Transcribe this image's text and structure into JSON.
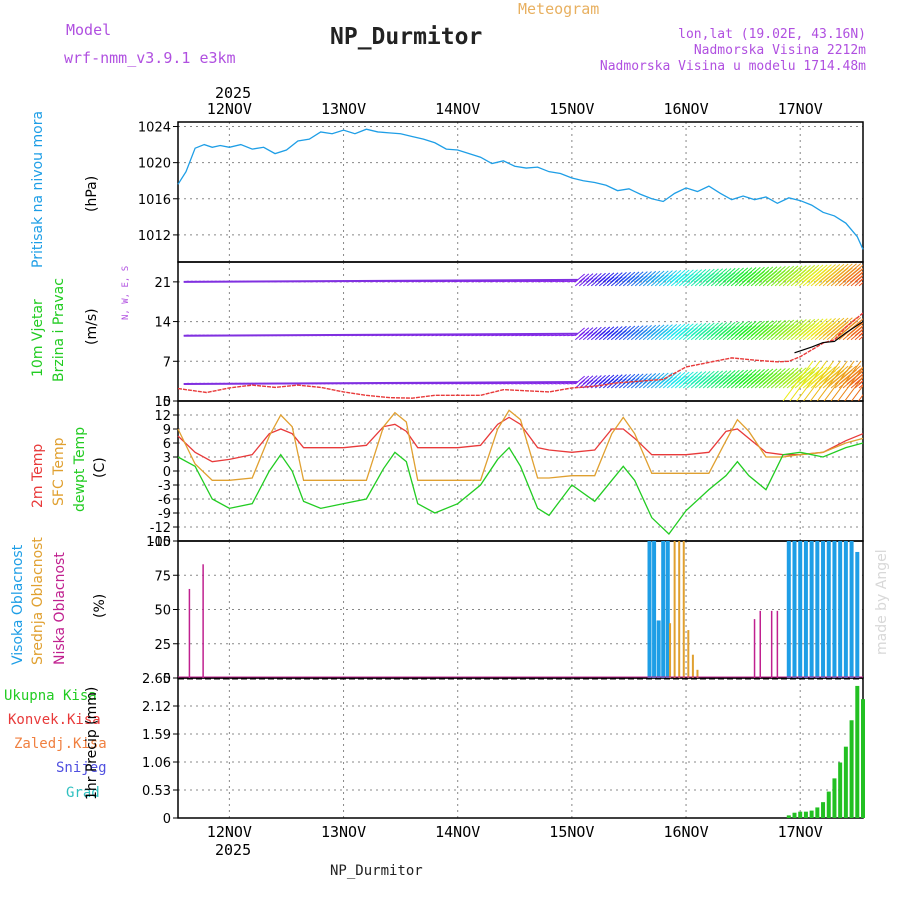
{
  "header": {
    "model_label": "Model",
    "model_name": "wrf-nmm_v3.9.1 e3km",
    "title": "NP_Durmitor",
    "subtitle": "Meteogram",
    "lonlat": "lon,lat (19.02E, 43.16N)",
    "altitude": "Nadmorska Visina 2212m",
    "model_altitude": "Nadmorska Visina u modelu 1714.48m",
    "credit": "made by Angel",
    "footer_station": "NP_Durmitor"
  },
  "colors": {
    "pressure": "#1e9ee6",
    "temp2m": "#e83a3a",
    "sfc_temp": "#e0a030",
    "dewpt": "#22cc22",
    "high_cloud": "#1e9ee6",
    "mid_cloud": "#e0a030",
    "low_cloud": "#c0208f",
    "precip": "#22c022",
    "wind_label": "#22cc22",
    "purple": "#b050e0"
  },
  "axis_days": {
    "year": "2025",
    "labels": [
      "12NOV",
      "13NOV",
      "14NOV",
      "15NOV",
      "16NOV",
      "17NOV"
    ],
    "day_positions": [
      1,
      2,
      3,
      4,
      5,
      6
    ],
    "range": [
      0.55,
      6.55
    ]
  },
  "chart_data": [
    {
      "type": "line",
      "name": "pressure",
      "ylabel": "Pritisak na nivou mora",
      "unit": "(hPa)",
      "yticks": [
        "1012",
        "1016",
        "1020",
        "1024"
      ],
      "ylim": [
        1009,
        1024.5
      ],
      "x": [
        0.55,
        0.62,
        0.7,
        0.78,
        0.85,
        0.92,
        1.0,
        1.1,
        1.2,
        1.3,
        1.4,
        1.5,
        1.6,
        1.7,
        1.8,
        1.9,
        2.0,
        2.1,
        2.2,
        2.3,
        2.4,
        2.5,
        2.6,
        2.7,
        2.8,
        2.9,
        3.0,
        3.1,
        3.2,
        3.3,
        3.4,
        3.5,
        3.6,
        3.7,
        3.8,
        3.9,
        4.0,
        4.1,
        4.2,
        4.3,
        4.4,
        4.5,
        4.6,
        4.7,
        4.8,
        4.9,
        5.0,
        5.1,
        5.2,
        5.3,
        5.4,
        5.5,
        5.6,
        5.7,
        5.8,
        5.9,
        6.0,
        6.1,
        6.2,
        6.3,
        6.4,
        6.5,
        6.55
      ],
      "values": [
        1017.6,
        1019,
        1021.6,
        1022,
        1021.7,
        1021.9,
        1021.7,
        1022,
        1021.5,
        1021.7,
        1021,
        1021.4,
        1022.4,
        1022.6,
        1023.4,
        1023.2,
        1023.6,
        1023.2,
        1023.7,
        1023.4,
        1023.3,
        1023.2,
        1022.9,
        1022.6,
        1022.2,
        1021.5,
        1021.4,
        1021.0,
        1020.6,
        1019.9,
        1020.2,
        1019.6,
        1019.4,
        1019.5,
        1019.0,
        1018.8,
        1018.3,
        1018.0,
        1017.8,
        1017.5,
        1016.9,
        1017.1,
        1016.5,
        1016.0,
        1015.7,
        1016.6,
        1017.2,
        1016.8,
        1017.4,
        1016.6,
        1015.9,
        1016.3,
        1015.9,
        1016.2,
        1015.5,
        1016.1,
        1015.8,
        1015.3,
        1014.5,
        1014.1,
        1013.3,
        1011.8,
        1010.4
      ]
    },
    {
      "type": "line",
      "name": "wind",
      "ylabel": "10m Vjetar",
      "ylabel2": "Brzina i Pravac",
      "unit": "(m/s)",
      "compass": "N, W, E, S",
      "yticks": [
        "0",
        "7",
        "14",
        "21"
      ],
      "ylim": [
        0,
        24.5
      ],
      "x": [
        0.55,
        0.8,
        1.0,
        1.2,
        1.4,
        1.6,
        1.8,
        2.0,
        2.2,
        2.4,
        2.6,
        2.8,
        3.0,
        3.2,
        3.4,
        3.6,
        3.8,
        4.0,
        4.2,
        4.4,
        4.6,
        4.8,
        5.0,
        5.2,
        5.4,
        5.6,
        5.8,
        5.9,
        6.0,
        6.1,
        6.2,
        6.3,
        6.4,
        6.55
      ],
      "values": [
        2.2,
        1.5,
        2.3,
        2.8,
        2.4,
        2.8,
        2.4,
        1.6,
        1.0,
        0.6,
        0.5,
        1.0,
        1.0,
        1.0,
        2.0,
        1.8,
        1.6,
        2.3,
        2.6,
        3.2,
        3.5,
        3.8,
        6.0,
        6.8,
        7.6,
        7.2,
        6.9,
        7.0,
        7.8,
        9.0,
        10.2,
        10.8,
        13.0,
        15.5
      ]
    },
    {
      "type": "line",
      "name": "temperature",
      "ylabels": [
        "2m Temp",
        "SFC Temp",
        "dewpt Temp"
      ],
      "unit": "(C)",
      "yticks": [
        "-15",
        "-12",
        "-9",
        "-6",
        "-3",
        "0",
        "3",
        "6",
        "9",
        "12",
        "15"
      ],
      "ylim": [
        -15,
        15
      ],
      "x": [
        0.55,
        0.7,
        0.85,
        1.0,
        1.2,
        1.35,
        1.45,
        1.55,
        1.65,
        1.8,
        2.0,
        2.2,
        2.35,
        2.45,
        2.55,
        2.65,
        2.8,
        3.0,
        3.2,
        3.35,
        3.45,
        3.55,
        3.7,
        3.8,
        4.0,
        4.2,
        4.35,
        4.45,
        4.55,
        4.7,
        4.85,
        5.0,
        5.2,
        5.35,
        5.45,
        5.55,
        5.7,
        5.85,
        6.0,
        6.2,
        6.4,
        6.55
      ],
      "series": [
        {
          "name": "2m Temp",
          "values": [
            7.5,
            4.0,
            2.0,
            2.5,
            3.5,
            8.0,
            9.0,
            8.0,
            5.0,
            5.0,
            5.0,
            5.5,
            9.5,
            10.0,
            8.5,
            5.0,
            5.0,
            5.0,
            5.5,
            10.0,
            11.5,
            10.0,
            5.0,
            4.5,
            4.0,
            4.5,
            9.0,
            9.0,
            7.0,
            3.5,
            3.5,
            3.5,
            4.0,
            8.5,
            9.0,
            7.0,
            4.0,
            3.5,
            3.5,
            4.0,
            6.5,
            8.0
          ]
        },
        {
          "name": "SFC Temp",
          "values": [
            9.0,
            1.5,
            -2.0,
            -2.0,
            -1.5,
            7.5,
            12.0,
            9.5,
            -2.0,
            -2.0,
            -2.0,
            -2.0,
            9.5,
            12.5,
            10.5,
            -2.0,
            -2.0,
            -2.0,
            -2.0,
            9.0,
            13.0,
            11.0,
            -1.5,
            -1.5,
            -1.0,
            -1.0,
            8.0,
            11.5,
            8.0,
            -0.5,
            -0.5,
            -0.5,
            -0.5,
            6.5,
            11.0,
            8.5,
            3.0,
            3.0,
            3.5,
            4.0,
            6.0,
            7.0
          ]
        },
        {
          "name": "dewpt Temp",
          "values": [
            3.0,
            1.0,
            -6.0,
            -8.0,
            -7.0,
            0.0,
            3.5,
            0.0,
            -6.5,
            -8.0,
            -7.0,
            -6.0,
            0.5,
            4.0,
            2.0,
            -7.0,
            -9.0,
            -7.0,
            -3.0,
            2.5,
            5.0,
            1.0,
            -8.0,
            -9.5,
            -3.0,
            -6.5,
            -2.0,
            1.0,
            -2.0,
            -10.0,
            -13.5,
            -8.5,
            -4.0,
            -1.0,
            2.0,
            -1.0,
            -4.0,
            3.5,
            4.0,
            3.0,
            5.0,
            6.0
          ]
        }
      ]
    },
    {
      "type": "bar",
      "name": "clouds",
      "ylabels": [
        "Visoka Oblacnost",
        "Srednja Oblacnost",
        "Niska Oblacnost"
      ],
      "unit": "(%)",
      "yticks": [
        "0",
        "25",
        "50",
        "75",
        "100"
      ],
      "ylim": [
        0,
        100
      ],
      "series": [
        {
          "name": "Visoka Oblacnost",
          "x": [
            4.68,
            4.72,
            4.76,
            4.8,
            4.84,
            5.9,
            5.95,
            6.0,
            6.05,
            6.1,
            6.15,
            6.2,
            6.25,
            6.3,
            6.35,
            6.4,
            6.45,
            6.5
          ],
          "values": [
            100,
            100,
            42,
            100,
            100,
            100,
            100,
            100,
            100,
            100,
            100,
            100,
            100,
            100,
            100,
            100,
            100,
            92
          ]
        },
        {
          "name": "Srednja Oblacnost",
          "x": [
            4.86,
            4.9,
            4.94,
            4.98,
            5.02,
            5.06,
            5.1
          ],
          "values": [
            40,
            100,
            100,
            100,
            35,
            17,
            6
          ]
        },
        {
          "name": "Niska Oblacnost",
          "x": [
            0.65,
            0.77,
            5.6,
            5.65,
            5.75,
            5.8
          ],
          "values": [
            65,
            83,
            43,
            49,
            49,
            49
          ]
        }
      ]
    },
    {
      "type": "bar",
      "name": "precip",
      "ylabels": [
        "Ukupna Kisa",
        "Konvek.Kisa",
        "Zaledj.Kisa",
        "Snijeg",
        "Grad"
      ],
      "unit": "1hr Precip (mm)",
      "yticks": [
        "0",
        "0.53",
        "1.06",
        "1.59",
        "2.12",
        "2.65"
      ],
      "ylim": [
        0,
        2.65
      ],
      "x": [
        5.9,
        5.95,
        6.0,
        6.05,
        6.1,
        6.15,
        6.2,
        6.25,
        6.3,
        6.35,
        6.4,
        6.45,
        6.5,
        6.55
      ],
      "values": [
        0.05,
        0.1,
        0.12,
        0.12,
        0.14,
        0.2,
        0.3,
        0.5,
        0.75,
        1.05,
        1.35,
        1.85,
        2.5,
        2.25
      ]
    }
  ]
}
